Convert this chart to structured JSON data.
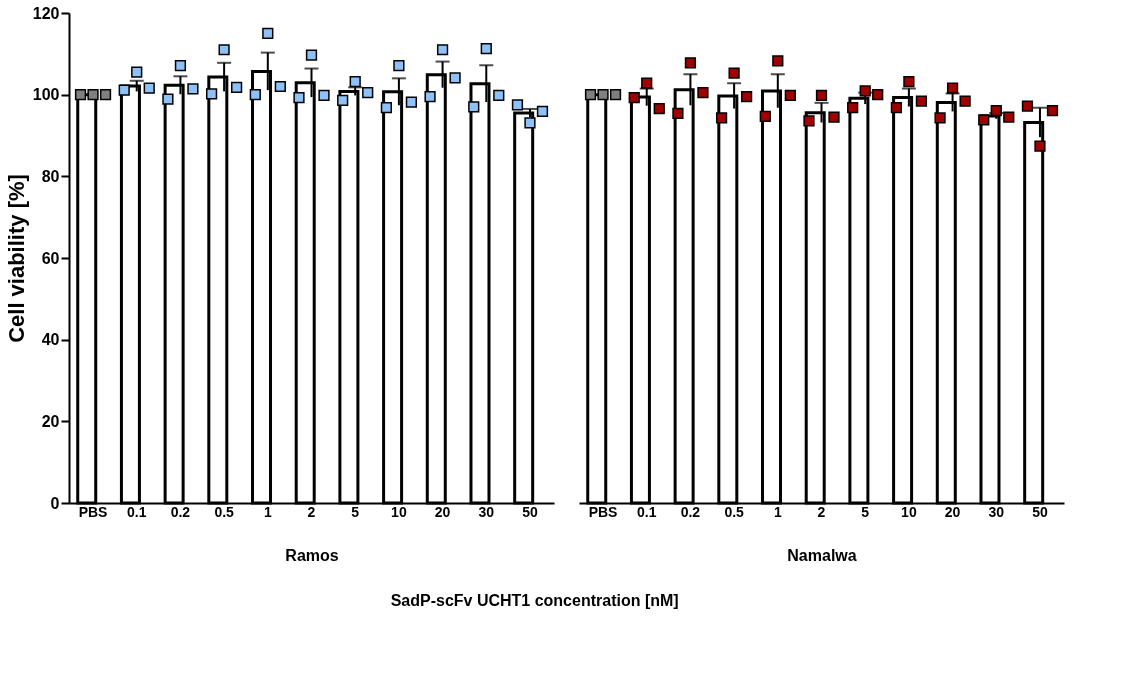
{
  "chart_data": [
    {
      "type": "bar",
      "ylabel": "Cell viability [%]",
      "xlabel": "Ramos",
      "annotations": [
        "SadP-scFv UCHT1 concentration [nM]"
      ],
      "categories": [
        "PBS",
        "0.1",
        "0.2",
        "0.5",
        "1",
        "2",
        "5",
        "10",
        "20",
        "30",
        "50"
      ],
      "ylim": [
        0,
        120
      ],
      "yticks": [
        0,
        20,
        40,
        60,
        80,
        100,
        120
      ],
      "grid": false,
      "series": [
        {
          "color": "#ffffff",
          "values": [
            100,
            102.1,
            102.3,
            104.3,
            105.7,
            102.9,
            100.8,
            100.7,
            104.9,
            102.7,
            95.5
          ],
          "errors": [
            null,
            1.3,
            2.2,
            3.5,
            4.6,
            3.5,
            1.0,
            3.3,
            3.2,
            4.5,
            1.0
          ]
        },
        {
          "type": "scatter",
          "marker": "square",
          "x": [
            "PBS",
            "PBS",
            "PBS",
            "0.1",
            "0.1",
            "0.1",
            "0.2",
            "0.2",
            "0.2",
            "0.5",
            "0.5",
            "0.5",
            "1",
            "1",
            "1",
            "2",
            "2",
            "2",
            "5",
            "5",
            "5",
            "10",
            "10",
            "10",
            "20",
            "20",
            "20",
            "30",
            "30",
            "30",
            "50",
            "50",
            "50"
          ],
          "values": [
            100,
            100,
            100,
            101.1,
            105.5,
            101.6,
            98.9,
            107.1,
            101.4,
            100.2,
            111,
            101.8,
            100,
            115,
            102,
            99.3,
            109.7,
            99.8,
            98.6,
            103.2,
            100.5,
            96.8,
            107.1,
            98.2,
            99.5,
            111,
            104.1,
            97,
            111.3,
            99.8,
            97.5,
            93.1,
            95.9
          ],
          "colors": [
            "#808080",
            "#808080",
            "#808080",
            "#8ec1f7",
            "#8ec1f7",
            "#8ec1f7",
            "#8ec1f7",
            "#8ec1f7",
            "#8ec1f7",
            "#8ec1f7",
            "#8ec1f7",
            "#8ec1f7",
            "#8ec1f7",
            "#8ec1f7",
            "#8ec1f7",
            "#8ec1f7",
            "#8ec1f7",
            "#8ec1f7",
            "#8ec1f7",
            "#8ec1f7",
            "#8ec1f7",
            "#8ec1f7",
            "#8ec1f7",
            "#8ec1f7",
            "#8ec1f7",
            "#8ec1f7",
            "#8ec1f7",
            "#8ec1f7",
            "#8ec1f7",
            "#8ec1f7",
            "#8ec1f7",
            "#8ec1f7",
            "#8ec1f7"
          ]
        }
      ]
    },
    {
      "type": "bar",
      "xlabel": "Namalwa",
      "tick_labels": "x",
      "categories": [
        "PBS",
        "0.1",
        "0.2",
        "0.5",
        "1",
        "2",
        "5",
        "10",
        "20",
        "30",
        "50"
      ],
      "ylim": [
        0,
        120
      ],
      "yticks": [
        0,
        20,
        40,
        60,
        80,
        100,
        120
      ],
      "grid": false,
      "series": [
        {
          "color": "#ffffff",
          "values": [
            100,
            99.4,
            101.2,
            99.7,
            100.9,
            95.6,
            99.1,
            99.3,
            98.1,
            94.8,
            93.2
          ],
          "errors": [
            null,
            2.1,
            3.8,
            3.1,
            4.1,
            2.4,
            1.4,
            2.2,
            2.2,
            0.7,
            3.6
          ]
        },
        {
          "type": "scatter",
          "marker": "square",
          "x": [
            "PBS",
            "PBS",
            "PBS",
            "0.1",
            "0.1",
            "0.1",
            "0.2",
            "0.2",
            "0.2",
            "0.5",
            "0.5",
            "0.5",
            "1",
            "1",
            "1",
            "2",
            "2",
            "2",
            "5",
            "5",
            "5",
            "10",
            "10",
            "10",
            "20",
            "20",
            "20",
            "30",
            "30",
            "30",
            "50",
            "50",
            "50"
          ],
          "values": [
            100,
            100,
            100,
            99.3,
            102.8,
            96.6,
            95.4,
            107.8,
            100.5,
            94.3,
            105.3,
            99.5,
            94.7,
            108.3,
            99.8,
            93.6,
            99.8,
            94.5,
            96.8,
            100.9,
            100,
            96.8,
            103.2,
            98.4,
            94.3,
            101.6,
            98.4,
            93.8,
            96.1,
            94.5,
            97.2,
            87.4,
            96.1
          ],
          "colors": [
            "#808080",
            "#808080",
            "#808080",
            "#a00000",
            "#a00000",
            "#a00000",
            "#a00000",
            "#a00000",
            "#a00000",
            "#a00000",
            "#a00000",
            "#a00000",
            "#a00000",
            "#a00000",
            "#a00000",
            "#a00000",
            "#a00000",
            "#a00000",
            "#a00000",
            "#a00000",
            "#a00000",
            "#a00000",
            "#a00000",
            "#a00000",
            "#a00000",
            "#a00000",
            "#a00000",
            "#a00000",
            "#a00000",
            "#a00000",
            "#a00000",
            "#a00000",
            "#a00000"
          ]
        }
      ]
    }
  ]
}
